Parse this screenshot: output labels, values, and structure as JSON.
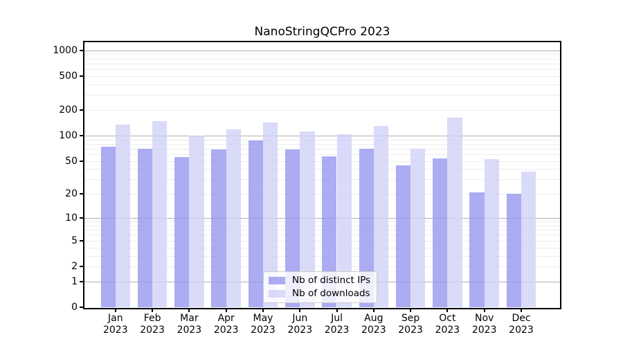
{
  "figure": {
    "title": "NanoStringQCPro 2023"
  },
  "chart_data": {
    "type": "bar",
    "title": "NanoStringQCPro 2023",
    "xlabel": "",
    "ylabel": "",
    "categories": [
      "Jan",
      "Feb",
      "Mar",
      "Apr",
      "May",
      "Jun",
      "Jul",
      "Aug",
      "Sep",
      "Oct",
      "Nov",
      "Dec"
    ],
    "category_year": "2023",
    "series": [
      {
        "name": "Nb of distinct IPs",
        "color": "#a9a9f2",
        "fill": "rgba(151,151,240,0.8)",
        "values": [
          74,
          70,
          56,
          68,
          87,
          69,
          57,
          70,
          44,
          54,
          21,
          20
        ]
      },
      {
        "name": "Nb of downloads",
        "color": "#d9d9f8",
        "fill": "rgba(209,209,247,0.8)",
        "values": [
          135,
          147,
          99,
          118,
          142,
          112,
          104,
          130,
          70,
          164,
          53,
          37
        ]
      }
    ],
    "yscale": "log(value+1)",
    "yticks": [
      0,
      1,
      2,
      5,
      10,
      20,
      50,
      100,
      200,
      500,
      1000
    ],
    "ylim": [
      0,
      1240
    ],
    "grid": {
      "major_values": [
        1,
        10,
        100,
        1000
      ],
      "major_color": "#b0b0b0",
      "minor_color": "#ececec"
    },
    "legend_position": "lower center",
    "axis_color": "#000000",
    "background": "#ffffff"
  }
}
